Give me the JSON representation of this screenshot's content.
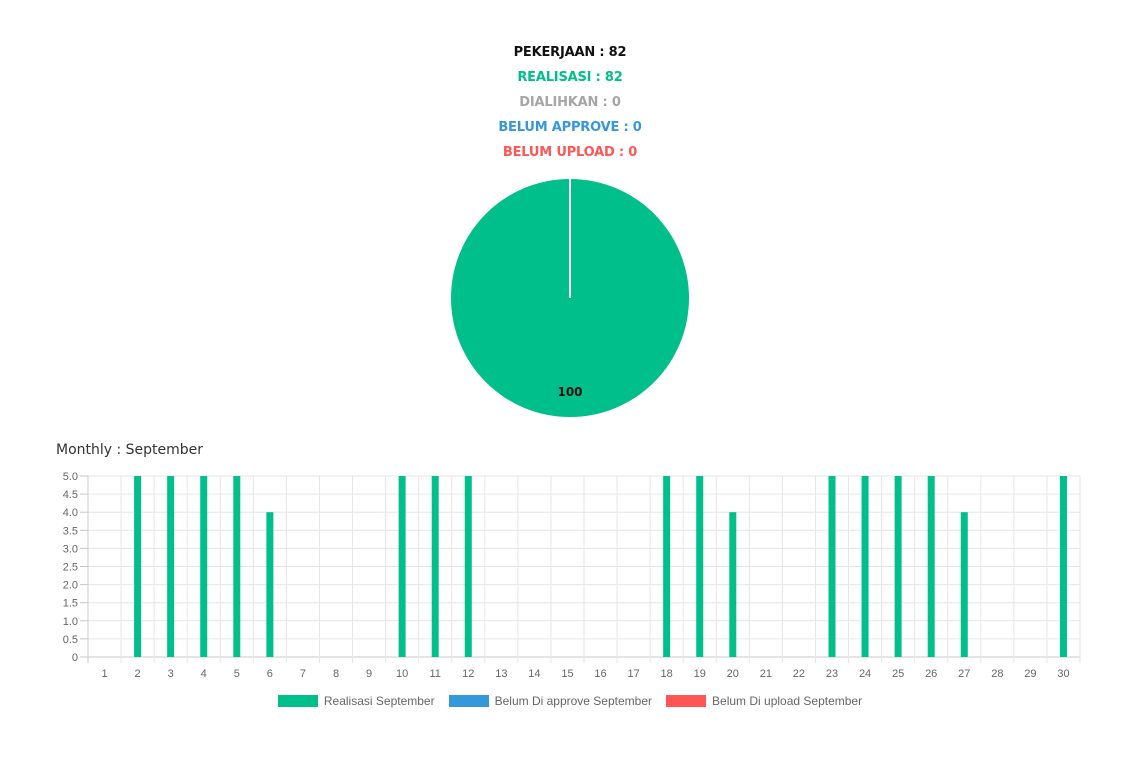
{
  "summary": {
    "pekerjaan": "PEKERJAAN : 82",
    "realisasi": "REALISASI : 82",
    "dialihkan": "DIALIHKAN : 0",
    "belum_approve": "BELUM APPROVE : 0",
    "belum_upload": "BELUM UPLOAD : 0"
  },
  "colors": {
    "black": "#111111",
    "green": "#00bf8a",
    "gray": "#a6a6a6",
    "blue": "#3498db",
    "red": "#ff5555"
  },
  "monthly_title": "Monthly : September",
  "chart_data": [
    {
      "type": "pie",
      "slices": [
        {
          "value": 100,
          "color": "#00bf8a",
          "label": "100"
        }
      ]
    },
    {
      "type": "bar",
      "categories": [
        "1",
        "2",
        "3",
        "4",
        "5",
        "6",
        "7",
        "8",
        "9",
        "10",
        "11",
        "12",
        "13",
        "14",
        "15",
        "16",
        "17",
        "18",
        "19",
        "20",
        "21",
        "22",
        "23",
        "24",
        "25",
        "26",
        "27",
        "28",
        "29",
        "30"
      ],
      "ylim": [
        0,
        5
      ],
      "yticks": [
        "0",
        "0.5",
        "1.0",
        "1.5",
        "2.0",
        "2.5",
        "3.0",
        "3.5",
        "4.0",
        "4.5",
        "5.0"
      ],
      "grid": true,
      "legend_placement": "bottom",
      "series": [
        {
          "name": "Realisasi September",
          "color": "#00bf8a",
          "values": [
            0,
            5,
            5,
            5,
            5,
            4,
            0,
            0,
            0,
            5,
            5,
            5,
            0,
            0,
            0,
            0,
            0,
            5,
            5,
            4,
            0,
            0,
            5,
            5,
            5,
            5,
            4,
            0,
            0,
            5
          ]
        },
        {
          "name": "Belum Di approve September",
          "color": "#3498db",
          "values": [
            0,
            0,
            0,
            0,
            0,
            0,
            0,
            0,
            0,
            0,
            0,
            0,
            0,
            0,
            0,
            0,
            0,
            0,
            0,
            0,
            0,
            0,
            0,
            0,
            0,
            0,
            0,
            0,
            0,
            0
          ]
        },
        {
          "name": "Belum Di upload September",
          "color": "#ff5555",
          "values": [
            0,
            0,
            0,
            0,
            0,
            0,
            0,
            0,
            0,
            0,
            0,
            0,
            0,
            0,
            0,
            0,
            0,
            0,
            0,
            0,
            0,
            0,
            0,
            0,
            0,
            0,
            0,
            0,
            0,
            0
          ]
        }
      ]
    }
  ]
}
